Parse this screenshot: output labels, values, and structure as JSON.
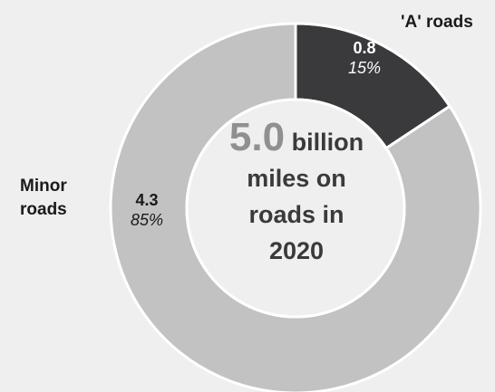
{
  "chart_data": {
    "type": "pie",
    "variant": "donut",
    "unit": "billion miles",
    "slices": [
      {
        "name": "'A' roads",
        "value": 0.8,
        "percent": "15%",
        "color": "#3a3a3d"
      },
      {
        "name": "Minor roads",
        "value": 4.3,
        "percent": "85%",
        "color": "#c2c2c2"
      }
    ],
    "center": {
      "total": "5.0",
      "line1_rest": "billion",
      "line2": "miles on",
      "line3": "roads in",
      "line4": "2020"
    },
    "labels": {
      "a_roads": "'A' roads",
      "minor_line1": "Minor",
      "minor_line2": "roads",
      "a_value": "0.8",
      "a_percent": "15%",
      "minor_value": "4.3",
      "minor_percent": "85%"
    }
  }
}
